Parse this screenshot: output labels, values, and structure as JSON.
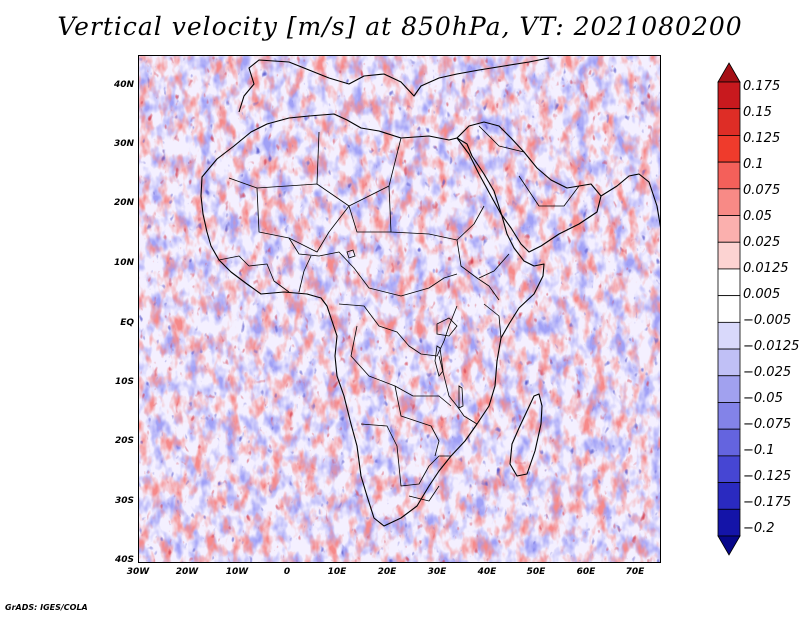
{
  "title": "Vertical velocity [m/s] at 850hPa, VT: 2021080200",
  "latitude_labels": [
    "40N",
    "30N",
    "20N",
    "10N",
    "EQ",
    "10S",
    "20S",
    "30S",
    "40S"
  ],
  "longitude_labels": [
    "30W",
    "20W",
    "10W",
    "0",
    "10E",
    "20E",
    "30E",
    "40E",
    "50E",
    "60E",
    "70E"
  ],
  "colorbar": {
    "levels": [
      "0.175",
      "0.15",
      "0.125",
      "0.1",
      "0.075",
      "0.05",
      "0.025",
      "0.0125",
      "0.005",
      "−0.005",
      "−0.0125",
      "−0.025",
      "−0.05",
      "−0.075",
      "−0.1",
      "−0.125",
      "−0.175",
      "−0.2"
    ],
    "colors": [
      "#a50f15",
      "#c8191e",
      "#de2d26",
      "#ef3b2c",
      "#f4605a",
      "#f88a86",
      "#fbb0ae",
      "#fcd3d2",
      "#ffffff",
      "#ffffff",
      "#d9d9fb",
      "#c0c0f6",
      "#a1a1ef",
      "#8383e8",
      "#6464df",
      "#4646d3",
      "#2a2ac0",
      "#1414a8",
      "#07078a"
    ]
  },
  "footer": "GrADS: IGES/COLA"
}
